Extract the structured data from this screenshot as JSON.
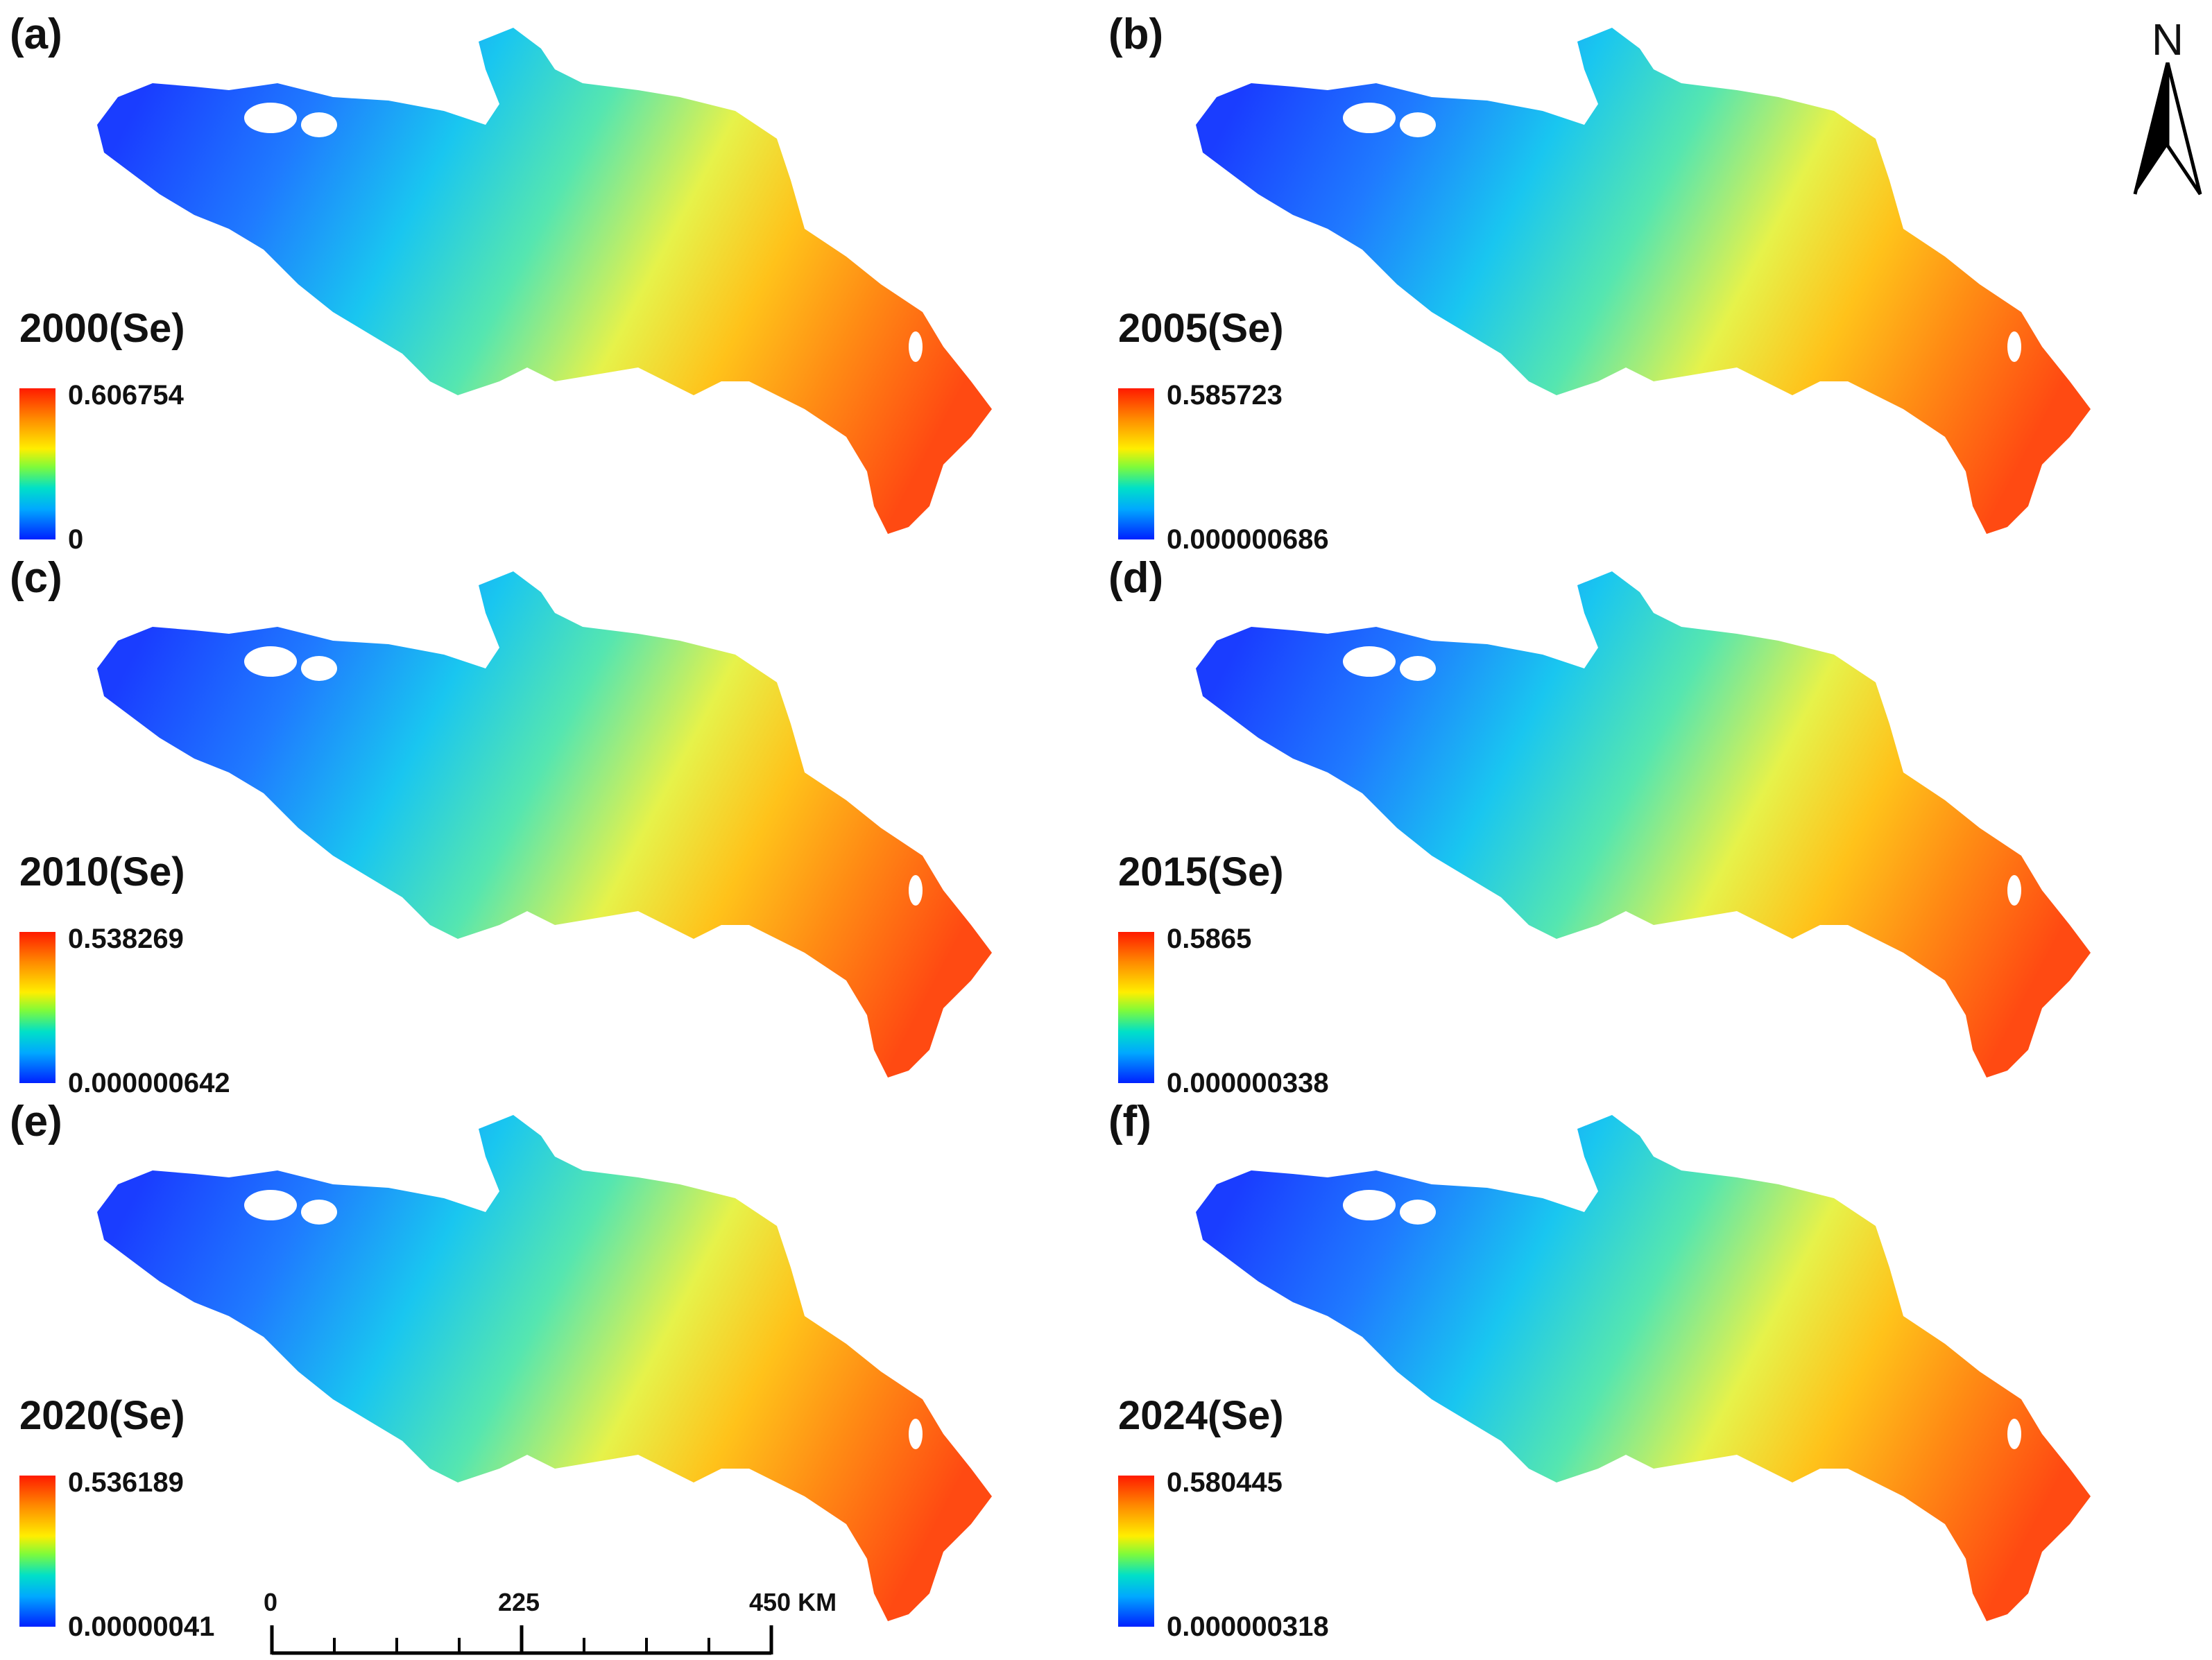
{
  "panels": [
    {
      "letter": "(a)",
      "title": "2000(Se)",
      "max": "0.606754",
      "min": "0"
    },
    {
      "letter": "(b)",
      "title": "2005(Se)",
      "max": "0.585723",
      "min": "0.000000686"
    },
    {
      "letter": "(c)",
      "title": "2010(Se)",
      "max": "0.538269",
      "min": "0.000000642"
    },
    {
      "letter": "(d)",
      "title": "2015(Se)",
      "max": "0.5865",
      "min": "0.000000338"
    },
    {
      "letter": "(e)",
      "title": "2020(Se)",
      "max": "0.536189",
      "min": "0.00000041"
    },
    {
      "letter": "(f)",
      "title": "2024(Se)",
      "max": "0.580445",
      "min": "0.000000318"
    }
  ],
  "north_arrow": {
    "label": "N"
  },
  "scale_bar": {
    "labels": [
      "0",
      "225",
      "450 KM"
    ]
  },
  "colors": {
    "low": "#0020ff",
    "mid": "#7ffb3a",
    "high": "#ff1a00"
  }
}
